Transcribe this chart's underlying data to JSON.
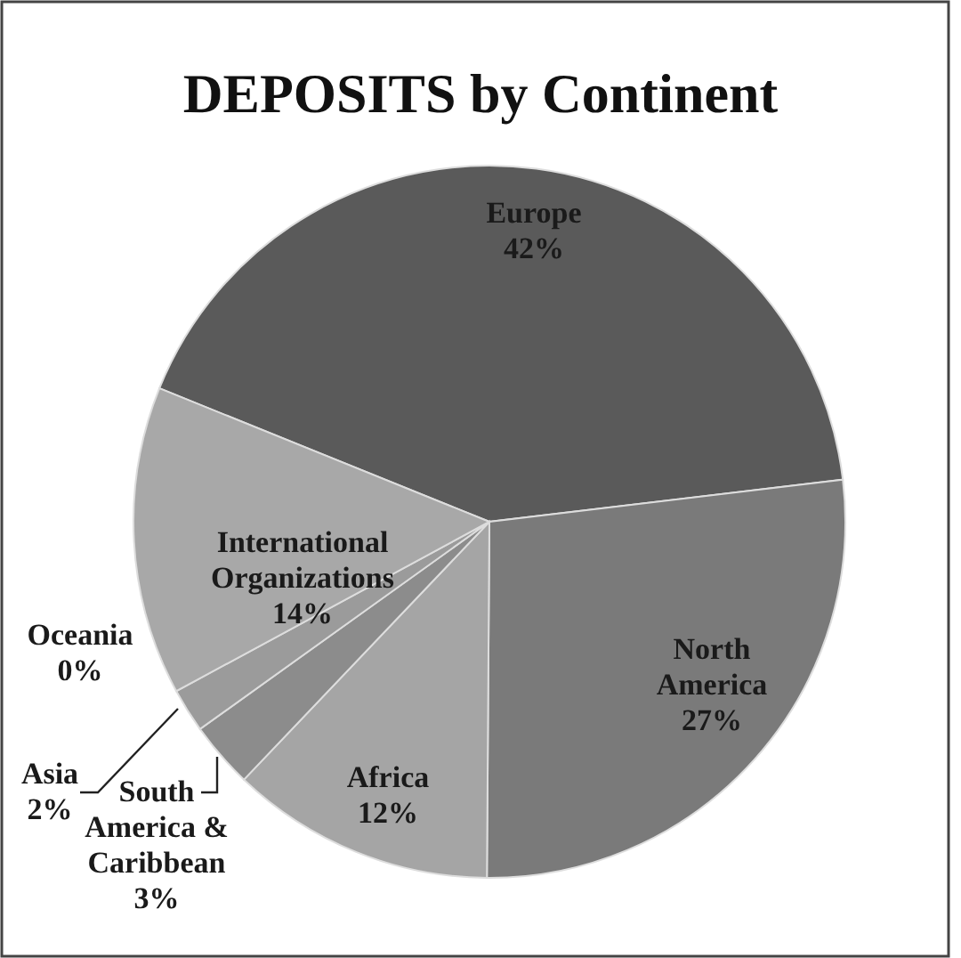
{
  "chart_data": {
    "type": "pie",
    "title": "DEPOSITS by Continent",
    "categories": [
      "Europe",
      "North America",
      "Africa",
      "South America & Caribbean",
      "Asia",
      "Oceania",
      "International Organizations"
    ],
    "values": [
      42,
      27,
      12,
      3,
      2,
      0,
      14
    ],
    "colors": [
      "#5a5a5a",
      "#7a7a7a",
      "#a5a5a5",
      "#8c8c8c",
      "#9b9b9b",
      null,
      "#a8a8a8"
    ],
    "value_labels": [
      "42%",
      "27%",
      "12%",
      "3%",
      "2%",
      "0%",
      "14%"
    ]
  }
}
